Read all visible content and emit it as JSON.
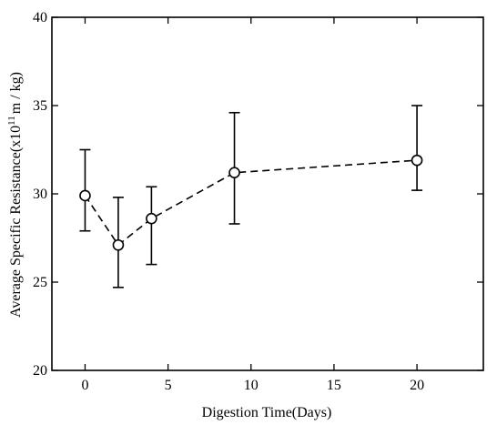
{
  "chart_data": {
    "type": "scatter",
    "xlabel": "Digestion Time(Days)",
    "ylabel_parts": {
      "prefix": "Average Specific Resistance(x10",
      "superscript": "11",
      "suffix": "m / kg)"
    },
    "xlim": [
      -2,
      24
    ],
    "ylim": [
      20,
      40
    ],
    "x_ticks": [
      0,
      5,
      10,
      15,
      20
    ],
    "y_ticks": [
      20,
      25,
      30,
      35,
      40
    ],
    "x_tick_labels": [
      "0",
      "5",
      "10",
      "15",
      "20"
    ],
    "y_tick_labels": [
      "20",
      "25",
      "30",
      "35",
      "40"
    ],
    "grid": false,
    "line_style": "dashed",
    "marker": "open-circle",
    "series": [
      {
        "x": [
          0,
          2,
          4,
          9,
          20
        ],
        "y": [
          29.9,
          27.1,
          28.6,
          31.2,
          31.9
        ],
        "err_low": [
          27.9,
          24.7,
          26.0,
          28.3,
          30.2
        ],
        "err_high": [
          32.5,
          29.8,
          30.4,
          34.6,
          35.0
        ]
      }
    ]
  }
}
